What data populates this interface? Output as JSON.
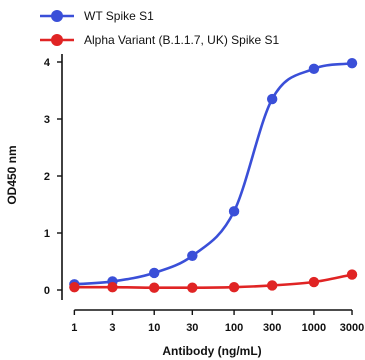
{
  "chart_data": {
    "type": "line",
    "title": "",
    "xlabel": "Antibody (ng/mL)",
    "ylabel": "OD450 nm",
    "x_scale": "log",
    "x": [
      1,
      3,
      10,
      30,
      100,
      300,
      1000,
      3000
    ],
    "x_tick_labels": [
      "1",
      "3",
      "10",
      "30",
      "100",
      "300",
      "1000",
      "3000"
    ],
    "xlim": [
      0.7,
      4000
    ],
    "ylim": [
      0,
      4
    ],
    "y_ticks": [
      0,
      1,
      2,
      3,
      4
    ],
    "y_tick_labels": [
      "0",
      "1",
      "2",
      "3",
      "4"
    ],
    "grid": false,
    "legend_position": "top-left",
    "series": [
      {
        "name": "WT Spike S1",
        "color": "#3a4fd8",
        "marker": "circle",
        "fit": "sigmoid",
        "values": [
          0.1,
          0.15,
          0.3,
          0.6,
          1.38,
          3.35,
          3.88,
          3.98
        ]
      },
      {
        "name": "Alpha Variant (B.1.1.7, UK) Spike S1",
        "color": "#e02424",
        "marker": "circle",
        "fit": "sigmoid",
        "values": [
          0.05,
          0.05,
          0.04,
          0.04,
          0.05,
          0.08,
          0.14,
          0.27
        ]
      }
    ]
  }
}
